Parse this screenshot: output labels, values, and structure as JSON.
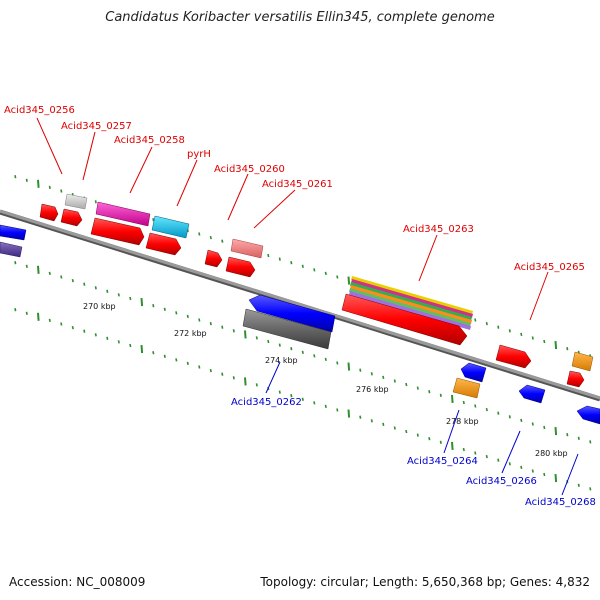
{
  "title": "Candidatus Koribacter versatilis Ellin345, complete genome",
  "accession": "Accession: NC_008009",
  "summary": "Topology: circular; Length: 5,650,368 bp; Genes: 4,832",
  "colors": {
    "forward_label": "#e00000",
    "reverse_label": "#0000cc",
    "tick": "#2f8f2f",
    "backbone": "#8a8a8a"
  },
  "scale_labels": [
    "270 kbp",
    "272 kbp",
    "274 kbp",
    "276 kbp",
    "278 kbp",
    "280 kbp"
  ],
  "forward_genes": [
    "Acid345_0256",
    "Acid345_0257",
    "Acid345_0258",
    "pyrH",
    "Acid345_0260",
    "Acid345_0261",
    "Acid345_0263",
    "Acid345_0265"
  ],
  "reverse_genes": [
    "Acid345_0262",
    "Acid345_0264",
    "Acid345_0266",
    "Acid345_0268"
  ]
}
